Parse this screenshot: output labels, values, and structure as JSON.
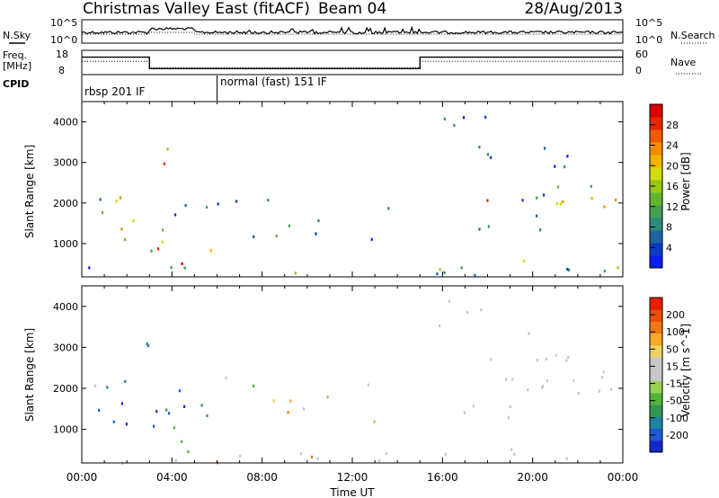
{
  "header": {
    "title": "Christmas Valley East (fitACF)",
    "beam": "Beam 04",
    "date": "28/Aug/2013"
  },
  "strip_labels": {
    "nsky": "N.Sky",
    "freq_line1": "Freq.",
    "freq_line2": "[MHz]",
    "cpid": "CPID",
    "nsearch": "N.Search",
    "nave": "Nave"
  },
  "strip_ticks": {
    "nsky_top": "10^5",
    "nsky_bottom": "10^0",
    "nsearch_top": "10^5",
    "nsearch_bottom": "10^0",
    "freq_top": "18",
    "freq_bottom": "8",
    "nave_top": "60",
    "nave_bottom": "0"
  },
  "cpid_segments": [
    {
      "label": "rbsp 201 IF"
    },
    {
      "label": "normal (fast) 151 IF"
    }
  ],
  "axes": {
    "ylabel": "Slant Range [km]",
    "xlabel": "Time UT",
    "yticks": [
      "1000",
      "2000",
      "3000",
      "4000"
    ],
    "xticks": [
      "00:00",
      "04:00",
      "08:00",
      "12:00",
      "16:00",
      "20:00",
      "00:00"
    ]
  },
  "chart_data": [
    {
      "type": "heatmap",
      "title": "Power",
      "x_range_hours": [
        0,
        24
      ],
      "y_range_km": [
        180,
        4500
      ],
      "colorbar": {
        "label": "Power [dB]",
        "ticks": [
          "4",
          "8",
          "12",
          "16",
          "20",
          "24",
          "28"
        ],
        "colors": [
          "#0a1ef5",
          "#0a3cc8",
          "#1e64a0",
          "#2d8c78",
          "#46a050",
          "#64b432",
          "#96c814",
          "#d2dc0a",
          "#f0b400",
          "#f58c00",
          "#f05a00",
          "#e62800",
          "#dc0000"
        ]
      }
    },
    {
      "type": "heatmap",
      "title": "Velocity",
      "x_range_hours": [
        0,
        24
      ],
      "y_range_km": [
        180,
        4500
      ],
      "colorbar": {
        "label": "Velocity [m s^-1]",
        "ticks": [
          "200",
          "100",
          "50",
          "15",
          "-15",
          "-50",
          "-100",
          "-200"
        ],
        "colors": [
          "#1428c8",
          "#1e5ad2",
          "#1e82a0",
          "#329650",
          "#50b43c",
          "#96d250",
          "#c8c8c8",
          "#c8c8c8",
          "#f0d264",
          "#f5aa28",
          "#f07814",
          "#eb500a",
          "#e61e00"
        ]
      }
    }
  ],
  "strips": {
    "freq_mhz": [
      {
        "t0": 0,
        "t1": 3.0,
        "v": 15.2
      },
      {
        "t0": 3.0,
        "t1": 15.0,
        "v": 10.5
      },
      {
        "t0": 15.0,
        "t1": 24,
        "v": 15.2
      }
    ],
    "nave": [
      {
        "t0": 0,
        "t1": 3.0,
        "v": 33
      },
      {
        "t0": 3.0,
        "t1": 15.0,
        "v": 17
      },
      {
        "t0": 15.0,
        "t1": 24,
        "v": 33
      }
    ],
    "cpid_change_hour": 6.0
  }
}
